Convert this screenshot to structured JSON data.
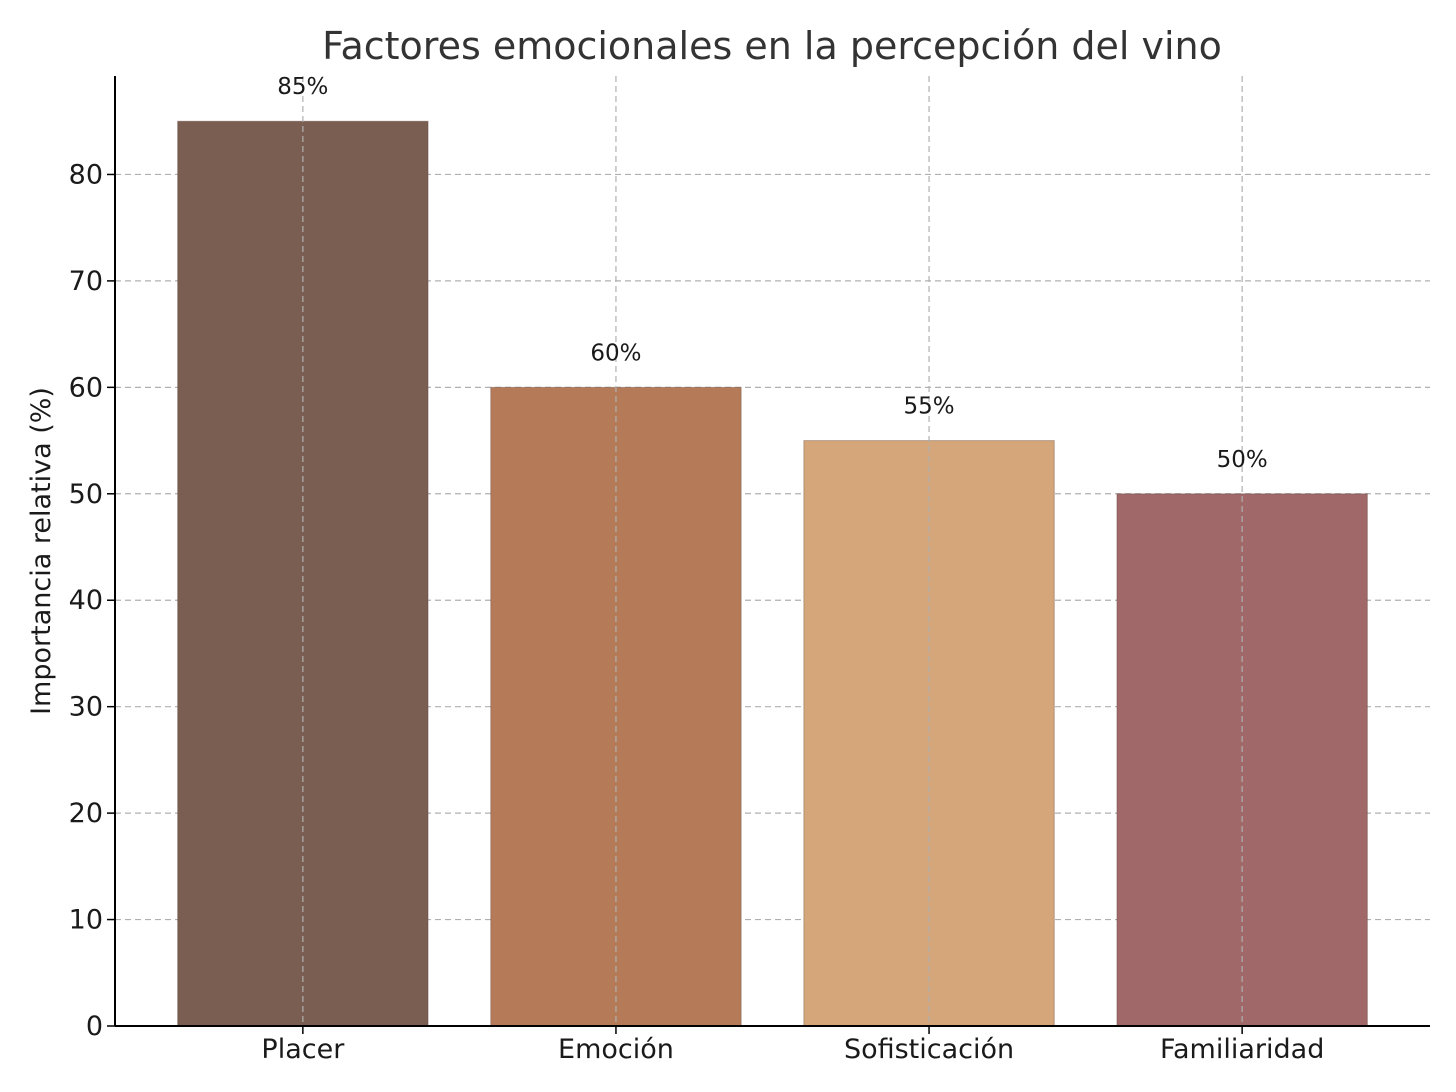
{
  "chart_data": {
    "type": "bar",
    "title": "Factores emocionales en la percepción del vino",
    "xlabel": "",
    "ylabel": "Importancia relativa (%)",
    "categories": [
      "Placer",
      "Emoción",
      "Sofisticación",
      "Familiaridad"
    ],
    "values": [
      85,
      60,
      55,
      50
    ],
    "data_labels": [
      "85%",
      "60%",
      "55%",
      "50%"
    ],
    "colors": [
      "#7b5e52",
      "#b57b59",
      "#d4a679",
      "#a06868"
    ],
    "ylim": [
      0,
      89.25
    ],
    "yticks": [
      0,
      10,
      20,
      30,
      40,
      50,
      60,
      70,
      80
    ],
    "grid": true
  }
}
